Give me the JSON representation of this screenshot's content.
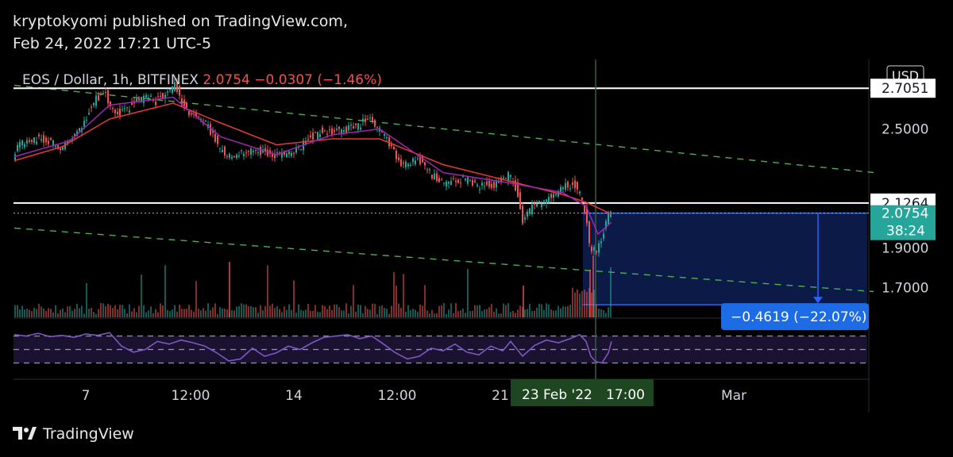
{
  "header": {
    "published": "kryptokyomi published on TradingView.com,",
    "datetime": "Feb 24, 2022 17:21 UTC-5"
  },
  "footer": {
    "brand": "TradingView"
  },
  "legend": {
    "symbol": "EOS / Dollar, 1h, BITFINEX",
    "price": "2.0754",
    "change": "−0.0307 (−1.46%)"
  },
  "colors": {
    "up": "#26a69a",
    "down": "#ef5350",
    "ema_fast": "#3f51f5",
    "ma_slow": "#e53935",
    "ma_purple": "#9c27b0",
    "trendline": "#4caf50",
    "range_fill": "#0d1f52",
    "range_stroke": "#2962ff",
    "label_blue": "#1e6be6",
    "rsi": "#7e57c2",
    "price_teal": "#26a69a",
    "crosshair_label": "#1e4620"
  },
  "chart_data": {
    "type": "candlestick",
    "symbol": "EOS / Dollar",
    "interval": "1h",
    "exchange": "BITFINEX",
    "currency": "USD",
    "y_ticks": [
      2.5,
      1.9,
      1.7
    ],
    "y_tick_labels": [
      "2.5000",
      "1.9000",
      "1.7000"
    ],
    "x_ticks": [
      "7",
      "12:00",
      "14",
      "12:00",
      "21",
      "Mar"
    ],
    "x_tick_values": [
      0,
      132,
      262,
      392,
      522,
      816
    ],
    "x_crosshair_label": "23 Feb '22   17:00",
    "x_crosshair_label_text": [
      "23 Feb '22",
      "17:00"
    ],
    "x_crosshair_index": 632,
    "price_levels": [
      {
        "value": 2.7051,
        "label": "2.7051"
      },
      {
        "value": 2.1264,
        "label": "2.1264"
      }
    ],
    "current_price": {
      "value": 2.0754,
      "label": "2.0754",
      "countdown": "38:24"
    },
    "measure_range": {
      "from": 2.0754,
      "to": 1.6135,
      "label": "−0.4619 (−22.07%)"
    },
    "ylim": [
      1.55,
      2.85
    ],
    "price_path": [
      [
        0,
        2.37
      ],
      [
        10,
        2.42
      ],
      [
        25,
        2.45
      ],
      [
        45,
        2.44
      ],
      [
        60,
        2.41
      ],
      [
        75,
        2.47
      ],
      [
        90,
        2.53
      ],
      [
        100,
        2.63
      ],
      [
        115,
        2.69
      ],
      [
        125,
        2.61
      ],
      [
        135,
        2.58
      ],
      [
        150,
        2.62
      ],
      [
        165,
        2.66
      ],
      [
        180,
        2.64
      ],
      [
        195,
        2.69
      ],
      [
        205,
        2.72
      ],
      [
        215,
        2.61
      ],
      [
        230,
        2.56
      ],
      [
        245,
        2.52
      ],
      [
        258,
        2.42
      ],
      [
        270,
        2.36
      ],
      [
        285,
        2.37
      ],
      [
        300,
        2.4
      ],
      [
        315,
        2.38
      ],
      [
        330,
        2.36
      ],
      [
        345,
        2.37
      ],
      [
        360,
        2.4
      ],
      [
        375,
        2.46
      ],
      [
        390,
        2.49
      ],
      [
        405,
        2.49
      ],
      [
        420,
        2.5
      ],
      [
        435,
        2.52
      ],
      [
        450,
        2.55
      ],
      [
        460,
        2.5
      ],
      [
        470,
        2.45
      ],
      [
        480,
        2.38
      ],
      [
        490,
        2.3
      ],
      [
        500,
        2.33
      ],
      [
        515,
        2.34
      ],
      [
        525,
        2.28
      ],
      [
        535,
        2.24
      ],
      [
        550,
        2.23
      ],
      [
        562,
        2.24
      ],
      [
        575,
        2.25
      ],
      [
        585,
        2.2
      ],
      [
        595,
        2.22
      ],
      [
        605,
        2.21
      ],
      [
        615,
        2.25
      ],
      [
        625,
        2.27
      ],
      [
        635,
        2.19
      ],
      [
        642,
        2.03
      ],
      [
        652,
        2.1
      ],
      [
        662,
        2.12
      ],
      [
        672,
        2.15
      ],
      [
        685,
        2.18
      ],
      [
        696,
        2.21
      ],
      [
        706,
        2.22
      ],
      [
        712,
        2.19
      ],
      [
        718,
        2.13
      ],
      [
        722,
        2.05
      ],
      [
        726,
        1.93
      ],
      [
        730,
        1.88
      ],
      [
        736,
        1.9
      ],
      [
        742,
        1.95
      ],
      [
        748,
        2.04
      ],
      [
        752,
        2.08
      ]
    ],
    "ma_slow_path": [
      [
        0,
        2.34
      ],
      [
        60,
        2.41
      ],
      [
        120,
        2.55
      ],
      [
        200,
        2.63
      ],
      [
        260,
        2.53
      ],
      [
        330,
        2.42
      ],
      [
        400,
        2.45
      ],
      [
        460,
        2.45
      ],
      [
        540,
        2.32
      ],
      [
        620,
        2.24
      ],
      [
        690,
        2.17
      ],
      [
        720,
        2.13
      ],
      [
        752,
        2.07
      ]
    ],
    "ema_fast_path": [
      [
        0,
        2.36
      ],
      [
        70,
        2.44
      ],
      [
        120,
        2.62
      ],
      [
        200,
        2.66
      ],
      [
        260,
        2.46
      ],
      [
        330,
        2.37
      ],
      [
        400,
        2.47
      ],
      [
        460,
        2.5
      ],
      [
        540,
        2.28
      ],
      [
        620,
        2.23
      ],
      [
        690,
        2.18
      ],
      [
        720,
        2.11
      ],
      [
        735,
        1.97
      ],
      [
        752,
        2.03
      ]
    ],
    "trendlines": [
      {
        "x0": 0,
        "y0": 2.72,
        "x1": 1100,
        "y1": 2.28
      },
      {
        "x0": 0,
        "y0": 2.0,
        "x1": 1100,
        "y1": 1.68
      }
    ],
    "rsi": {
      "levels": [
        70,
        50,
        30
      ],
      "ylim": [
        20,
        80
      ],
      "path": [
        [
          0,
          72
        ],
        [
          15,
          70
        ],
        [
          30,
          74
        ],
        [
          45,
          69
        ],
        [
          60,
          71
        ],
        [
          75,
          68
        ],
        [
          90,
          73
        ],
        [
          105,
          71
        ],
        [
          120,
          75
        ],
        [
          135,
          55
        ],
        [
          150,
          46
        ],
        [
          165,
          50
        ],
        [
          180,
          62
        ],
        [
          195,
          58
        ],
        [
          210,
          64
        ],
        [
          225,
          60
        ],
        [
          240,
          55
        ],
        [
          255,
          45
        ],
        [
          270,
          33
        ],
        [
          285,
          36
        ],
        [
          300,
          52
        ],
        [
          315,
          40
        ],
        [
          330,
          45
        ],
        [
          345,
          55
        ],
        [
          360,
          50
        ],
        [
          375,
          60
        ],
        [
          390,
          68
        ],
        [
          405,
          70
        ],
        [
          420,
          72
        ],
        [
          435,
          66
        ],
        [
          450,
          70
        ],
        [
          465,
          58
        ],
        [
          480,
          45
        ],
        [
          495,
          36
        ],
        [
          510,
          40
        ],
        [
          525,
          52
        ],
        [
          540,
          48
        ],
        [
          555,
          58
        ],
        [
          570,
          46
        ],
        [
          585,
          42
        ],
        [
          600,
          55
        ],
        [
          615,
          48
        ],
        [
          625,
          62
        ],
        [
          640,
          40
        ],
        [
          655,
          56
        ],
        [
          670,
          64
        ],
        [
          685,
          60
        ],
        [
          700,
          66
        ],
        [
          712,
          72
        ],
        [
          720,
          62
        ],
        [
          726,
          40
        ],
        [
          732,
          32
        ],
        [
          740,
          30
        ],
        [
          748,
          45
        ],
        [
          752,
          62
        ]
      ]
    }
  }
}
